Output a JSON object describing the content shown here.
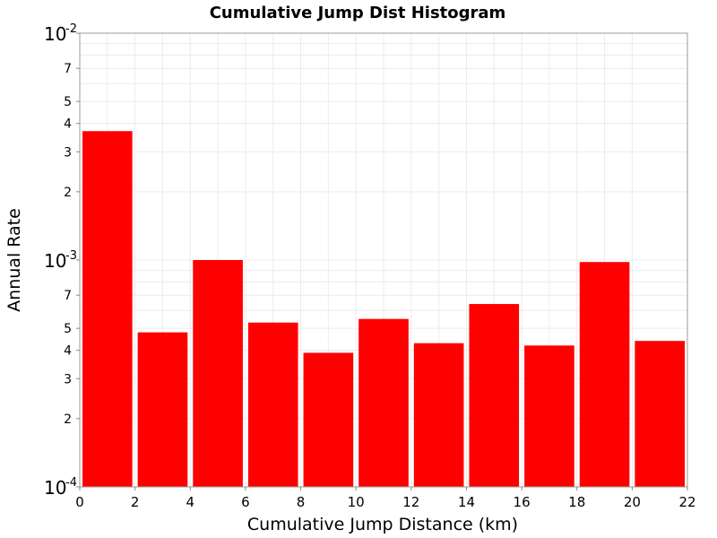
{
  "chart_data": {
    "type": "bar",
    "title": "Cumulative Jump Dist Histogram",
    "xlabel": "Cumulative Jump Distance (km)",
    "ylabel": "Annual Rate",
    "xlim": [
      0,
      22
    ],
    "ylim": [
      0.0001,
      0.01
    ],
    "yscale": "log",
    "grid": true,
    "bar_color": "#ff0000",
    "x_ticks": [
      "0",
      "2",
      "4",
      "6",
      "8",
      "10",
      "12",
      "14",
      "16",
      "18",
      "20",
      "22"
    ],
    "y_minor_ticks": [
      "2",
      "3",
      "4",
      "5",
      "7"
    ],
    "y_major_ticks": [
      {
        "base": "10",
        "exp": "-4"
      },
      {
        "base": "10",
        "exp": "-3"
      },
      {
        "base": "10",
        "exp": "-2"
      }
    ],
    "bins": [
      {
        "x_start": 0,
        "x_end": 2,
        "value": 0.0037
      },
      {
        "x_start": 2,
        "x_end": 4,
        "value": 0.00048
      },
      {
        "x_start": 4,
        "x_end": 6,
        "value": 0.001
      },
      {
        "x_start": 6,
        "x_end": 8,
        "value": 0.00053
      },
      {
        "x_start": 8,
        "x_end": 10,
        "value": 0.00039
      },
      {
        "x_start": 10,
        "x_end": 12,
        "value": 0.00055
      },
      {
        "x_start": 12,
        "x_end": 14,
        "value": 0.00043
      },
      {
        "x_start": 14,
        "x_end": 16,
        "value": 0.00064
      },
      {
        "x_start": 16,
        "x_end": 18,
        "value": 0.00042
      },
      {
        "x_start": 18,
        "x_end": 20,
        "value": 0.00098
      },
      {
        "x_start": 20,
        "x_end": 22,
        "value": 0.00044
      }
    ]
  }
}
